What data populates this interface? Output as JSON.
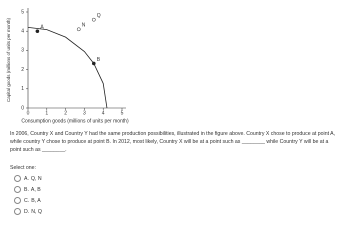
{
  "chart_data": {
    "type": "line",
    "x_label": "Consumption goods (millions of units per month)",
    "y_label": "Capital goods (millions of units per month)",
    "xlim": [
      0,
      5
    ],
    "ylim": [
      0,
      5
    ],
    "xticks": [
      0,
      1,
      2,
      3,
      4,
      5
    ],
    "yticks": [
      0,
      1,
      2,
      3,
      4,
      5
    ],
    "series": [
      {
        "color": "#222222",
        "x": [
          0,
          1,
          2,
          3,
          3.5,
          4,
          4.2
        ],
        "values": [
          4.2,
          4.08,
          3.69,
          2.94,
          2.32,
          1.28,
          0
        ]
      }
    ],
    "points": [
      {
        "label": "A",
        "x": 0.5,
        "y": 4.0,
        "filled": true
      },
      {
        "label": "N",
        "x": 2.7,
        "y": 4.1,
        "filled": false
      },
      {
        "label": "Q",
        "x": 3.5,
        "y": 4.6,
        "filled": false
      },
      {
        "label": "B",
        "x": 3.5,
        "y": 2.32,
        "filled": true
      }
    ]
  },
  "question": {
    "text": "In 2006, Country X and Country Y had the same production possibilities, illustrated in the figure above. Country X chose to produce at point A, while country Y chose to produce at point B. In 2012, most likely, Country X will be at a point such as ________ while Country Y will be at a point such as ________.",
    "prompt": "Select one:",
    "options": [
      [
        "A.",
        "Q, N"
      ],
      [
        "B.",
        "A, B"
      ],
      [
        "C.",
        "B, A"
      ],
      [
        "D.",
        "N, Q"
      ]
    ]
  }
}
